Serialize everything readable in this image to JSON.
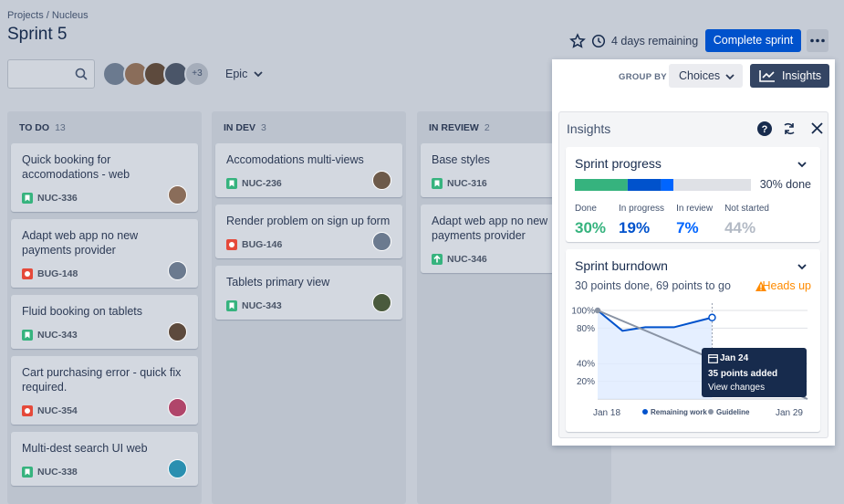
{
  "header": {
    "breadcrumb": "Projects / Nucleus",
    "title": "Sprint 5",
    "avatars_more": "+3",
    "epic": "Epic",
    "days_remaining": "4 days remaining",
    "complete_button": "Complete sprint"
  },
  "toolbar": {
    "group_by": "GROUP BY",
    "choices": "Choices",
    "insights_button": "Insights"
  },
  "columns": [
    {
      "name": "TO DO",
      "count": 13,
      "cards": [
        {
          "title": "Quick booking for accomodations - web",
          "key": "NUC-336",
          "icon": "story",
          "avatar": "#8a6d5a"
        },
        {
          "title": "Adapt web app no new payments provider",
          "key": "BUG-148",
          "icon": "bug",
          "avatar": "#6b7a8f"
        },
        {
          "title": "Fluid booking on tablets",
          "key": "NUC-343",
          "icon": "story",
          "avatar": "#5d4a3d"
        },
        {
          "title": "Cart purchasing error - quick fix required.",
          "key": "NUC-354",
          "icon": "bug",
          "avatar": "#b0456a"
        },
        {
          "title": "Multi-dest search UI web",
          "key": "NUC-338",
          "icon": "story",
          "avatar": "#2a8fb0"
        }
      ]
    },
    {
      "name": "IN DEV",
      "count": 3,
      "cards": [
        {
          "title": "Accomodations multi-views",
          "key": "NUC-236",
          "icon": "story",
          "avatar": "#6d5a4a"
        },
        {
          "title": "Render problem on sign up form",
          "key": "BUG-146",
          "icon": "bug",
          "avatar": "#6b7a8f"
        },
        {
          "title": "Tablets primary view",
          "key": "NUC-343",
          "icon": "story",
          "avatar": "#4a5a3d"
        }
      ]
    },
    {
      "name": "IN REVIEW",
      "count": 2,
      "cards": [
        {
          "title": "Base styles",
          "key": "NUC-316",
          "icon": "story",
          "avatar": "#6d5a4a"
        },
        {
          "title": "Adapt web app no new payments provider",
          "key": "NUC-346",
          "icon": "improvement",
          "avatar": "#6b7a8f"
        }
      ]
    }
  ],
  "insights": {
    "title": "Insights",
    "progress": {
      "title": "Sprint progress",
      "done_label": "30% done",
      "stats": [
        {
          "label": "Done",
          "value": 30,
          "value_label": "30%",
          "color": "#36b37e"
        },
        {
          "label": "In progress",
          "value": 19,
          "value_label": "19%",
          "color": "#0052cc"
        },
        {
          "label": "In review",
          "value": 7,
          "value_label": "7%",
          "color": "#0065ff"
        },
        {
          "label": "Not started",
          "value": 44,
          "value_label": "44%",
          "color": "#dfe1e6"
        }
      ]
    },
    "burndown": {
      "title": "Sprint burndown",
      "subtitle": "30 points done, 69 points to go",
      "warning": "Heads up",
      "chart_data": {
        "type": "line",
        "xlim": [
          18,
          29
        ],
        "xticks": [
          {
            "value": 18,
            "label": "Jan 18"
          },
          {
            "value": 29,
            "label": "Jan 29"
          }
        ],
        "ylim": [
          0,
          100
        ],
        "yticks": [
          {
            "value": 100,
            "label": "100%"
          },
          {
            "value": 80,
            "label": "80%"
          },
          {
            "value": 40,
            "label": "40%"
          },
          {
            "value": 20,
            "label": "20%"
          }
        ],
        "series": [
          {
            "name": "Remaining work",
            "color": "#0052cc",
            "x": [
              18,
              19.3,
              20.5,
              22,
              24
            ],
            "values": [
              100,
              77,
              81,
              81,
              92
            ]
          },
          {
            "name": "Guideline",
            "color": "#8993a4",
            "x": [
              18,
              29
            ],
            "values": [
              100,
              0
            ]
          }
        ]
      },
      "tooltip": {
        "date": "Jan 24",
        "text": "35 points added",
        "link": "View changes"
      }
    }
  }
}
